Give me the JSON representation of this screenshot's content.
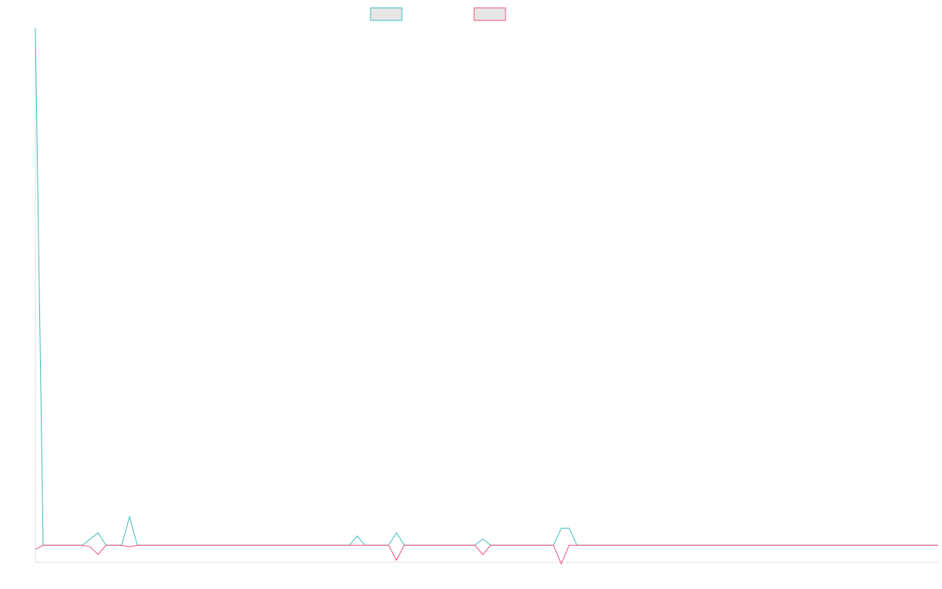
{
  "chart_data": {
    "type": "line",
    "categories": [
      null,
      null,
      null,
      null,
      null,
      null,
      null,
      null,
      null,
      null,
      null,
      null,
      null,
      null,
      null,
      null,
      null,
      null,
      null,
      null,
      null,
      null,
      null,
      null,
      null,
      null,
      null,
      null,
      null,
      null,
      null,
      null,
      null,
      null,
      null,
      null,
      null,
      null,
      null,
      null,
      null,
      null,
      null,
      null,
      null,
      null,
      null,
      null,
      null,
      null,
      null,
      null,
      null,
      null,
      null,
      null,
      null,
      null,
      null,
      null,
      null,
      null,
      null,
      null,
      null,
      null,
      null,
      null,
      null,
      null,
      null,
      null,
      null,
      null,
      null,
      null,
      null,
      null,
      null,
      null,
      null,
      null,
      null,
      null,
      null,
      null,
      null,
      null,
      null,
      null,
      null,
      null,
      null,
      null,
      null,
      null,
      null,
      null,
      null,
      null,
      null,
      null,
      null,
      null,
      null,
      null,
      null,
      null,
      null,
      null,
      null,
      null,
      null,
      null,
      null,
      null
    ],
    "series": [
      {
        "color": "#3fbfbf",
        "values": [
          100,
          0,
          0,
          0,
          0,
          0,
          0,
          1.2,
          2.4,
          0,
          0,
          0,
          5.5,
          0,
          0,
          0,
          0,
          0,
          0,
          0,
          0,
          0,
          0,
          0,
          0,
          0,
          0,
          0,
          0,
          0,
          0,
          0,
          0,
          0,
          0,
          0,
          0,
          0,
          0,
          0,
          0,
          1.8,
          0,
          0,
          0,
          0,
          2.4,
          0,
          0,
          0,
          0,
          0,
          0,
          0,
          0,
          0,
          0,
          1.2,
          0,
          0,
          0,
          0,
          0,
          0,
          0,
          0,
          0,
          3.3,
          3.3,
          0,
          0,
          0,
          0,
          0,
          0,
          0,
          0,
          0,
          0,
          0,
          0,
          0,
          0,
          0,
          0,
          0,
          0,
          0,
          0,
          0,
          0,
          0,
          0,
          0,
          0,
          0,
          0,
          0,
          0,
          0,
          0,
          0,
          0,
          0,
          0,
          0,
          0,
          0,
          0,
          0,
          0,
          0,
          0,
          0,
          0,
          0
        ]
      },
      {
        "color": "#f0557a",
        "values": [
          -0.8,
          0,
          0,
          0,
          0,
          0,
          0,
          -0.3,
          -1.8,
          0,
          0,
          0,
          -0.3,
          0,
          0,
          0,
          0,
          0,
          0,
          0,
          0,
          0,
          0,
          0,
          0,
          0,
          0,
          0,
          0,
          0,
          0,
          0,
          0,
          0,
          0,
          0,
          0,
          0,
          0,
          0,
          0,
          0,
          0,
          0,
          0,
          0,
          -2.9,
          0,
          0,
          0,
          0,
          0,
          0,
          0,
          0,
          0,
          0,
          -1.8,
          0,
          0,
          0,
          0,
          0,
          0,
          0,
          0,
          0,
          -3.6,
          0,
          0,
          0,
          0,
          0,
          0,
          0,
          0,
          0,
          0,
          0,
          0,
          0,
          0,
          0,
          0,
          0,
          0,
          0,
          0,
          0,
          0,
          0,
          0,
          0,
          0,
          0,
          0,
          0,
          0,
          0,
          0,
          0,
          0,
          0,
          0,
          0,
          0,
          0,
          0,
          0,
          0,
          0,
          0,
          0,
          0,
          0,
          0
        ]
      }
    ],
    "ylim": [
      -3.6,
      100
    ]
  }
}
